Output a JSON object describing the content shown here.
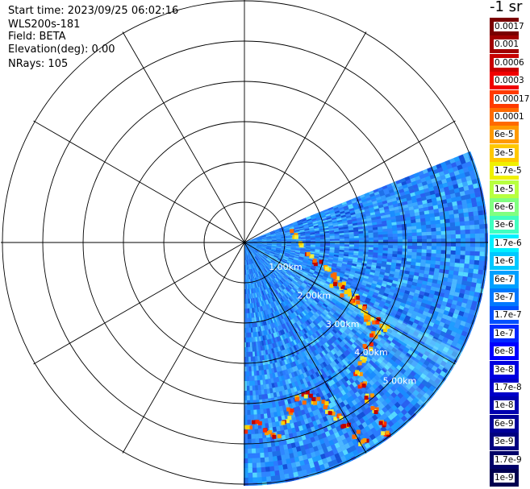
{
  "info": {
    "start_time": "Start time: 2023/09/25 06:02:16",
    "instrument": "WLS200s-181",
    "field": "Field: BETA",
    "elevation": "Elevation(deg): 0.00",
    "nrays": "NRays: 105"
  },
  "colorbar": {
    "title": "-1 sr",
    "entries": [
      {
        "label": "0.0017",
        "color": "#7a0000"
      },
      {
        "label": "0.001",
        "color": "#a00000"
      },
      {
        "label": "0.0006",
        "color": "#c80000"
      },
      {
        "label": "0.0003",
        "color": "#f00000"
      },
      {
        "label": "0.00017",
        "color": "#ff3a00"
      },
      {
        "label": "0.0001",
        "color": "#ff6a00"
      },
      {
        "label": "6e-5",
        "color": "#ff9a00"
      },
      {
        "label": "3e-5",
        "color": "#ffc800"
      },
      {
        "label": "1.7e-5",
        "color": "#f0f000"
      },
      {
        "label": "1e-5",
        "color": "#b8ff40"
      },
      {
        "label": "6e-6",
        "color": "#80ff80"
      },
      {
        "label": "3e-6",
        "color": "#40ffc0"
      },
      {
        "label": "1.7e-6",
        "color": "#00f0ff"
      },
      {
        "label": "1e-6",
        "color": "#00c8ff"
      },
      {
        "label": "6e-7",
        "color": "#00a0ff"
      },
      {
        "label": "3e-7",
        "color": "#0078ff"
      },
      {
        "label": "1.7e-7",
        "color": "#0050ff"
      },
      {
        "label": "1e-7",
        "color": "#0028ff"
      },
      {
        "label": "6e-8",
        "color": "#0000ff"
      },
      {
        "label": "3e-8",
        "color": "#0000e0"
      },
      {
        "label": "1.7e-8",
        "color": "#0000c8"
      },
      {
        "label": "1e-8",
        "color": "#0000b0"
      },
      {
        "label": "6e-9",
        "color": "#000098"
      },
      {
        "label": "3e-9",
        "color": "#000080"
      },
      {
        "label": "1.7e-9",
        "color": "#000068"
      },
      {
        "label": "1e-9",
        "color": "#000050"
      }
    ]
  },
  "ppi": {
    "range_labels": [
      "1.00km",
      "2.00km",
      "3.00km",
      "4.00km",
      "5.00km"
    ],
    "sector_start_deg": 68,
    "sector_end_deg": 180,
    "ring_count": 6,
    "spoke_step_deg": 30
  }
}
